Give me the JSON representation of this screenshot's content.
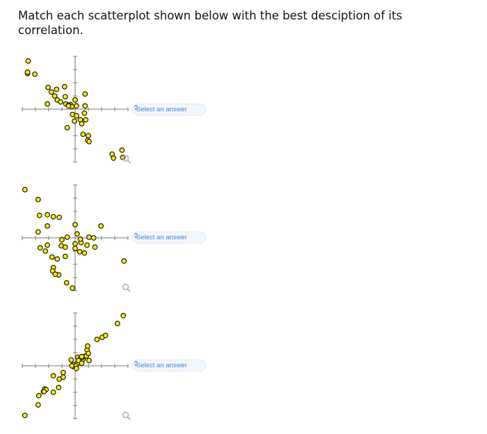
{
  "question": {
    "line1": "Match each scatterplot shown below with the best desciption of its",
    "line2": "correlation."
  },
  "select_placeholder": "Select an answer",
  "colors": {
    "point_fill": "#ffee00",
    "point_stroke": "#1a1a1a",
    "axis": "#777777",
    "select_text": "#3a82d6",
    "select_bg": "#f2f7fd"
  },
  "icons": {
    "select": "chevron-updown-icon",
    "zoom": "magnifier-icon"
  },
  "chart_data": [
    {
      "type": "scatter",
      "xlim": [
        -8,
        8
      ],
      "ylim": [
        -8,
        8
      ],
      "grid": false,
      "points": [
        [
          -7.1,
          7.3
        ],
        [
          -7.2,
          5.4
        ],
        [
          -6.1,
          5.3
        ],
        [
          -7.2,
          5.6
        ],
        [
          -4.1,
          3.3
        ],
        [
          -3.6,
          2.6
        ],
        [
          -2.8,
          3.0
        ],
        [
          -1.6,
          3.4
        ],
        [
          -3.1,
          2.0
        ],
        [
          -2.7,
          1.4
        ],
        [
          -2.2,
          1.1
        ],
        [
          -1.5,
          1.9
        ],
        [
          -1.4,
          0.8
        ],
        [
          -0.7,
          0.7
        ],
        [
          0.0,
          1.4
        ],
        [
          -4.2,
          0.8
        ],
        [
          -1.0,
          0.6
        ],
        [
          -0.5,
          0.4
        ],
        [
          0.2,
          0.5
        ],
        [
          1.5,
          0.5
        ],
        [
          -1.0,
          0.5
        ],
        [
          1.5,
          2.3
        ],
        [
          -0.4,
          -0.8
        ],
        [
          0.2,
          -1.0
        ],
        [
          1.4,
          -0.6
        ],
        [
          0.8,
          -1.6
        ],
        [
          1.6,
          -1.6
        ],
        [
          -0.1,
          -1.8
        ],
        [
          1.0,
          -2.2
        ],
        [
          -1.2,
          -2.8
        ],
        [
          1.2,
          -3.8
        ],
        [
          2.0,
          -4.0
        ],
        [
          1.9,
          -4.7
        ],
        [
          2.1,
          -4.9
        ],
        [
          5.6,
          -6.8
        ],
        [
          5.8,
          -7.4
        ],
        [
          7.1,
          -6.2
        ],
        [
          7.2,
          -7.3
        ]
      ]
    },
    {
      "type": "scatter",
      "xlim": [
        -8,
        8
      ],
      "ylim": [
        -8,
        8
      ],
      "grid": false,
      "points": [
        [
          -7.6,
          7.3
        ],
        [
          -5.6,
          5.8
        ],
        [
          -5.4,
          3.4
        ],
        [
          -4.2,
          3.5
        ],
        [
          -3.3,
          3.2
        ],
        [
          -2.4,
          3.1
        ],
        [
          -4.2,
          1.8
        ],
        [
          -5.6,
          0.9
        ],
        [
          -4.2,
          -1.1
        ],
        [
          -5.3,
          -1.5
        ],
        [
          -4.5,
          -2.0
        ],
        [
          -2.1,
          -1.2
        ],
        [
          -2.0,
          -0.3
        ],
        [
          -1.5,
          -1.4
        ],
        [
          -1.2,
          0.1
        ],
        [
          -3.5,
          -2.9
        ],
        [
          -2.7,
          -3.2
        ],
        [
          -3.3,
          -4.5
        ],
        [
          -3.4,
          -5.0
        ],
        [
          -2.5,
          -5.6
        ],
        [
          -3.0,
          -5.5
        ],
        [
          -1.5,
          -2.8
        ],
        [
          -1.3,
          -6.8
        ],
        [
          -0.4,
          -7.6
        ],
        [
          0.0,
          -1.6
        ],
        [
          0.0,
          -0.9
        ],
        [
          0.3,
          0.6
        ],
        [
          0.0,
          2.0
        ],
        [
          0.7,
          -2.1
        ],
        [
          1.4,
          -2.3
        ],
        [
          0.9,
          -0.7
        ],
        [
          1.8,
          -1.1
        ],
        [
          2.1,
          0.1
        ],
        [
          2.8,
          0.0
        ],
        [
          3.0,
          -1.4
        ],
        [
          3.9,
          1.8
        ],
        [
          7.4,
          -3.5
        ],
        [
          0.8,
          -0.2
        ]
      ]
    },
    {
      "type": "scatter",
      "xlim": [
        -8,
        8
      ],
      "ylim": [
        -8,
        8
      ],
      "grid": false,
      "points": [
        [
          -7.6,
          -7.5
        ],
        [
          -5.6,
          -5.9
        ],
        [
          -5.5,
          -4.5
        ],
        [
          -4.8,
          -3.9
        ],
        [
          -4.6,
          -3.5
        ],
        [
          -4.4,
          -3.6
        ],
        [
          -4.7,
          -3.9
        ],
        [
          -3.3,
          -4.0
        ],
        [
          -2.5,
          -3.3
        ],
        [
          -3.3,
          -1.5
        ],
        [
          -2.4,
          -2.0
        ],
        [
          -1.8,
          -1.7
        ],
        [
          -1.8,
          -1.0
        ],
        [
          -0.3,
          -0.1
        ],
        [
          -0.3,
          0.2
        ],
        [
          0.4,
          0.4
        ],
        [
          0.1,
          0.0
        ],
        [
          -0.6,
          0.9
        ],
        [
          0.4,
          1.3
        ],
        [
          0.8,
          1.1
        ],
        [
          0.5,
          0.8
        ],
        [
          1.2,
          1.0
        ],
        [
          1.1,
          1.3
        ],
        [
          1.0,
          0.4
        ],
        [
          0.2,
          -0.4
        ],
        [
          -0.5,
          0.0
        ],
        [
          1.6,
          1.5
        ],
        [
          1.8,
          2.4
        ],
        [
          1.9,
          3.0
        ],
        [
          1.7,
          1.5
        ],
        [
          1.0,
          1.4
        ],
        [
          2.0,
          1.9
        ],
        [
          2.1,
          0.8
        ],
        [
          3.3,
          4.0
        ],
        [
          4.1,
          4.3
        ],
        [
          4.6,
          4.6
        ],
        [
          6.4,
          6.4
        ],
        [
          7.3,
          7.6
        ]
      ]
    }
  ]
}
